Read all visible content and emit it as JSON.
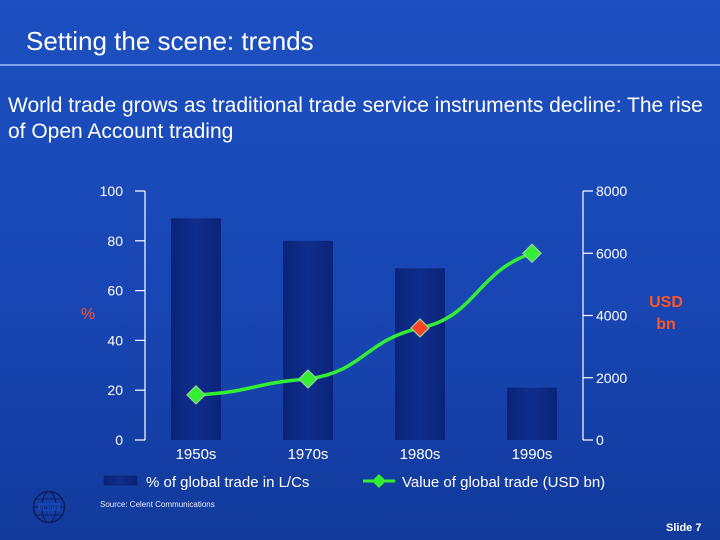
{
  "slide": {
    "title": "Setting the scene: trends",
    "subtitle": "World trade grows as traditional trade service instruments decline: The rise of Open Account trading",
    "source": "Source: Celent Communications",
    "slide_number": "Slide 7",
    "logo_text": "SWIFT"
  },
  "colors": {
    "background": "#1846b4",
    "bar": "#0f2d8c",
    "line": "#33ee33",
    "marker": "#33ee33",
    "highlight_marker": "#ff4422",
    "right_axis_unit": "#ff5522"
  },
  "chart_data": {
    "type": "bar",
    "categories": [
      "1950s",
      "1970s",
      "1980s",
      "1990s"
    ],
    "left_axis": {
      "label": "%",
      "ylim": [
        0,
        100
      ],
      "ticks": [
        "0",
        "20",
        "40",
        "60",
        "80",
        "100"
      ]
    },
    "right_axis": {
      "label": "USD bn",
      "ylim": [
        0,
        8000
      ],
      "ticks": [
        "0",
        "2000",
        "4000",
        "6000",
        "8000"
      ]
    },
    "grid": false,
    "legend_position": "bottom",
    "series": [
      {
        "name": "% of global trade in L/Cs",
        "type": "bar",
        "axis": "left",
        "values": [
          89,
          80,
          69,
          21
        ]
      },
      {
        "name": "Value of global trade (USD bn)",
        "type": "line",
        "axis": "right",
        "values": [
          1450,
          1960,
          3600,
          6000
        ],
        "highlight_index": 2
      }
    ]
  }
}
